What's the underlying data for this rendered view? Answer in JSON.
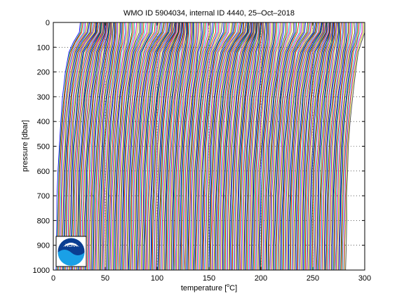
{
  "chart_data": {
    "type": "line",
    "title": "WMO ID 5904034, internal ID 4440, 25–Oct–2018",
    "xlabel_prefix": "temperature [",
    "xlabel_sup": "o",
    "xlabel_suffix": "C]",
    "ylabel": "pressure [dbar]",
    "xlim": [
      0,
      300
    ],
    "ylim": [
      0,
      1000
    ],
    "y_reversed": true,
    "x_ticks": [
      "0",
      "50",
      "100",
      "150",
      "200",
      "250",
      "300"
    ],
    "y_ticks": [
      "0",
      "100",
      "200",
      "300",
      "400",
      "500",
      "600",
      "700",
      "800",
      "900",
      "1000"
    ],
    "grid": true,
    "legend": "none",
    "series_description": "About 280 temperature profiles, each offset by one unit in x; each profile has a warm mixed layer near the surface and cools with depth.",
    "profile_count": 280,
    "profile_offset": 1,
    "profile_shape": {
      "pressure": [
        0,
        40,
        80,
        120,
        200,
        300,
        400,
        500,
        600,
        700,
        800,
        900,
        1000
      ],
      "temperature_anomaly_summer": [
        28,
        27,
        20,
        15,
        12,
        9,
        7,
        5.5,
        4.5,
        3.8,
        3.3,
        3.0,
        2.8
      ],
      "temperature_anomaly_winter": [
        16,
        16,
        15.5,
        14,
        12,
        9,
        7,
        5.5,
        4.5,
        3.8,
        3.3,
        3.0,
        2.8
      ]
    },
    "colors": [
      "#0000ff",
      "#008000",
      "#ff0000",
      "#00bfbf",
      "#bf00bf",
      "#bfbf00",
      "#404040"
    ],
    "logo": "NOAA"
  }
}
